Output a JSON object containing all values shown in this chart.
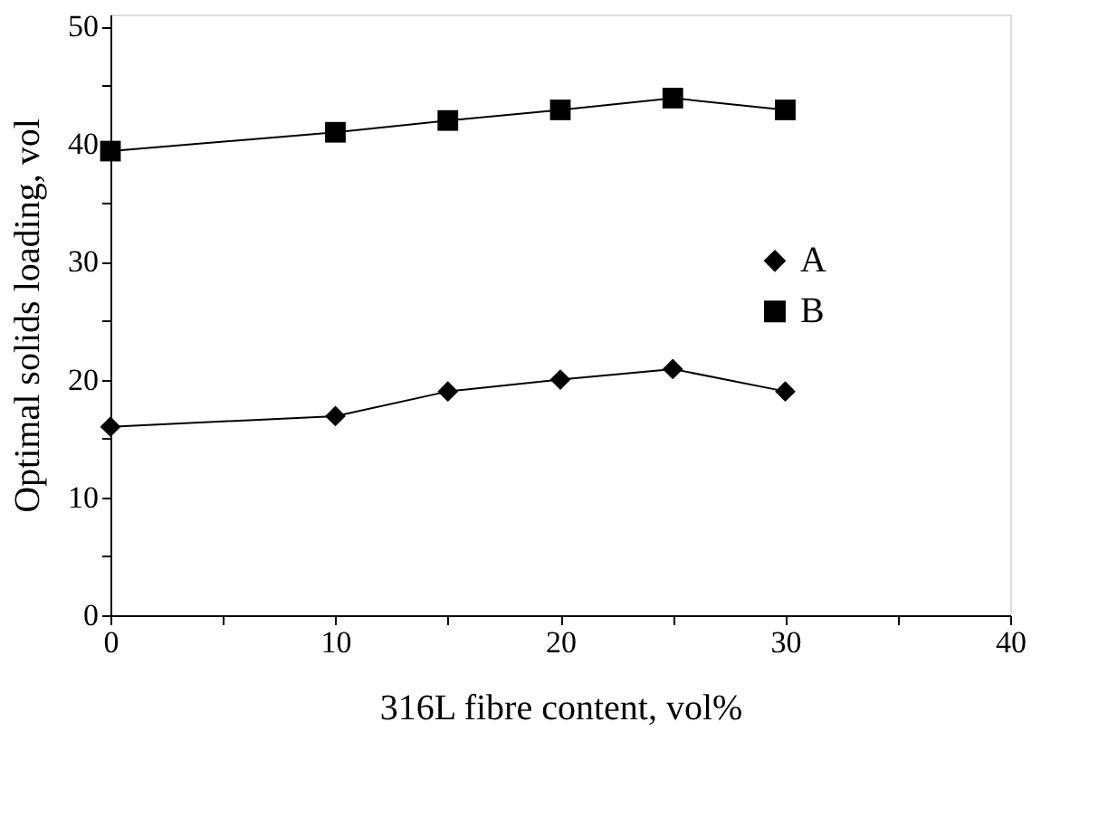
{
  "chart_data": {
    "type": "line",
    "xlabel": "316L fibre content, vol%",
    "ylabel": "Optimal solids loading, vol",
    "xlim": [
      0,
      40
    ],
    "ylim": [
      0,
      51
    ],
    "xticks": [
      0,
      {
        "value": 5,
        "label": null
      },
      10,
      {
        "value": 15,
        "label": null
      },
      20,
      {
        "value": 25,
        "label": null
      },
      30,
      {
        "value": 35,
        "label": null
      },
      40
    ],
    "yticks": [
      0,
      {
        "value": 5,
        "label": null
      },
      10,
      {
        "value": 15,
        "label": null
      },
      20,
      {
        "value": 25,
        "label": null
      },
      30,
      {
        "value": 35,
        "label": null
      },
      40,
      {
        "value": 45,
        "label": null
      },
      50
    ],
    "x": [
      0,
      10,
      15,
      20,
      25,
      30
    ],
    "series": [
      {
        "name": "A",
        "color": "#000000",
        "marker": "diamond",
        "values": [
          16.0,
          16.9,
          19.0,
          20.0,
          20.9,
          19.0
        ]
      },
      {
        "name": "B",
        "color": "#000000",
        "marker": "square",
        "values": [
          39.4,
          41.0,
          42.0,
          42.9,
          43.9,
          42.9
        ]
      }
    ],
    "legend": "right",
    "grid": false,
    "line_style": "solid"
  }
}
